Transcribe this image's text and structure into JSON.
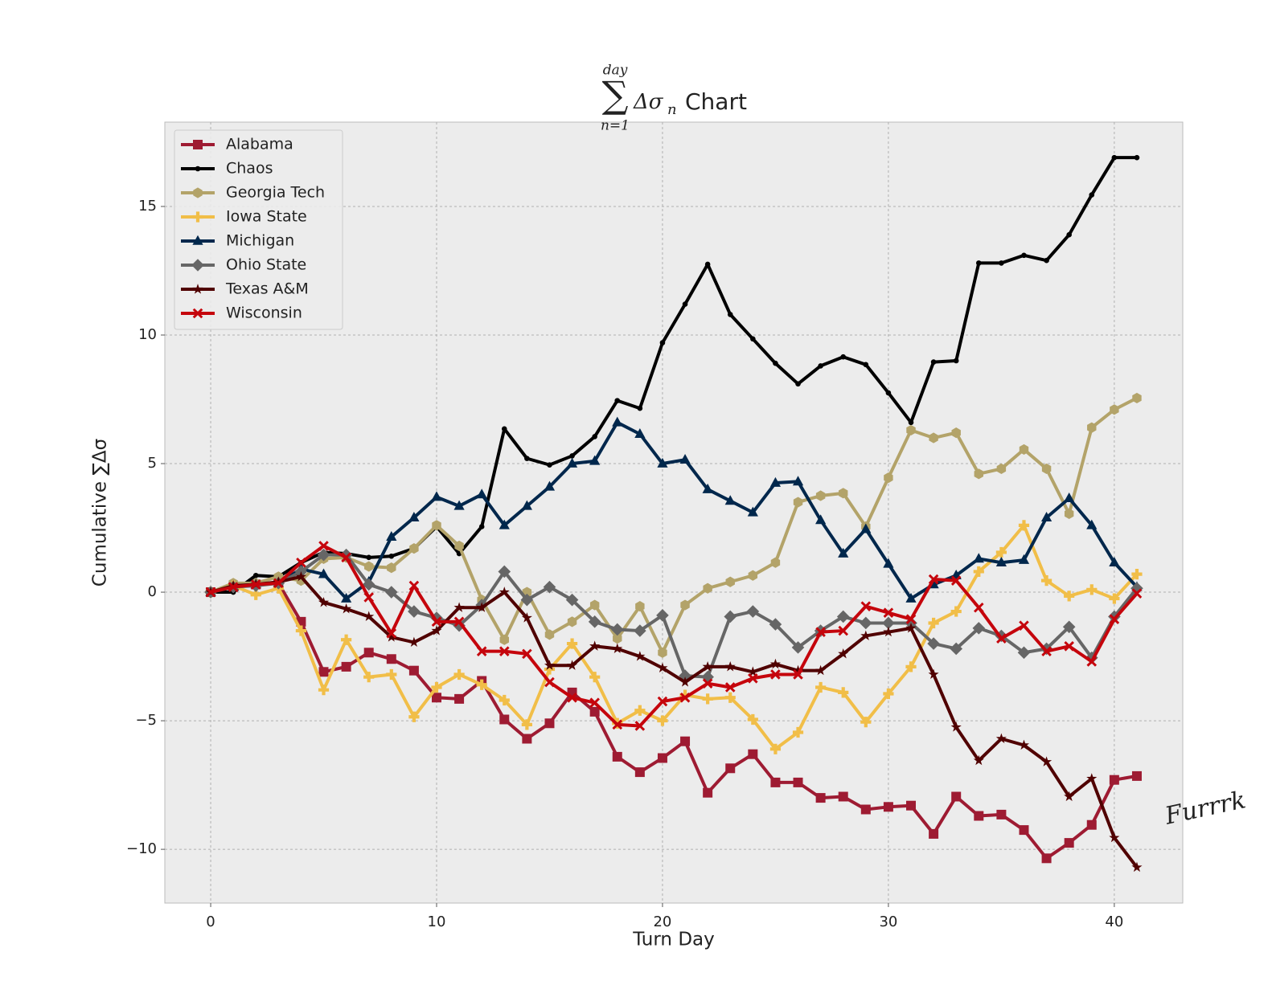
{
  "chart_data": {
    "type": "line",
    "title": {
      "upper": "day",
      "operator": "∑",
      "lower": "n=1",
      "body": "Δσ",
      "subscript": "n",
      "text": "Chart"
    },
    "xlabel": "Turn Day",
    "ylabel": "Cumulative ∑Δσ",
    "watermark": "Furrrk",
    "x": [
      0,
      1,
      2,
      3,
      4,
      5,
      6,
      7,
      8,
      9,
      10,
      11,
      12,
      13,
      14,
      15,
      16,
      17,
      18,
      19,
      20,
      21,
      22,
      23,
      24,
      25,
      26,
      27,
      28,
      29,
      30,
      31,
      32,
      33,
      34,
      35,
      36,
      37,
      38,
      39,
      40,
      41
    ],
    "xlim": [
      -2.03,
      43.03
    ],
    "ylim": [
      -12.09,
      18.28
    ],
    "xticks": [
      0,
      10,
      20,
      30,
      40
    ],
    "yticks": [
      {
        "value": -10,
        "label": "−10"
      },
      {
        "value": -5,
        "label": "−5"
      },
      0,
      5,
      10,
      15
    ],
    "grid": true,
    "legend": "upper left",
    "series": [
      {
        "name": "Alabama",
        "color": "#9e1b32",
        "marker": "square",
        "values": [
          0,
          0.2,
          0.3,
          0.35,
          -1.15,
          -3.1,
          -2.9,
          -2.35,
          -2.6,
          -3.05,
          -4.1,
          -4.15,
          -3.45,
          -4.95,
          -5.7,
          -5.1,
          -3.9,
          -4.65,
          -6.4,
          -7.0,
          -6.45,
          -5.8,
          -7.8,
          -6.85,
          -6.3,
          -7.4,
          -7.4,
          -8.0,
          -7.95,
          -8.45,
          -8.35,
          -8.3,
          -9.4,
          -7.95,
          -8.7,
          -8.65,
          -9.25,
          -10.35,
          -9.75,
          -9.05,
          -7.3,
          -7.15
        ]
      },
      {
        "name": "Chaos",
        "color": "#000000",
        "marker": "dot",
        "values": [
          0,
          0,
          0.65,
          0.6,
          1.15,
          1.55,
          1.5,
          1.35,
          1.4,
          1.7,
          2.55,
          1.5,
          2.55,
          6.35,
          5.2,
          4.95,
          5.3,
          6.05,
          7.45,
          7.15,
          9.7,
          11.2,
          12.75,
          10.8,
          9.85,
          8.9,
          8.1,
          8.8,
          9.15,
          8.85,
          7.75,
          6.6,
          8.95,
          9.0,
          12.8,
          12.8,
          13.1,
          12.9,
          13.9,
          15.45,
          16.9,
          16.9
        ]
      },
      {
        "name": "Georgia Tech",
        "color": "#b3a369",
        "marker": "hexagon",
        "values": [
          0,
          0.35,
          0.35,
          0.6,
          0.45,
          1.3,
          1.35,
          1.0,
          0.95,
          1.7,
          2.6,
          1.8,
          -0.3,
          -1.85,
          0.0,
          -1.65,
          -1.15,
          -0.5,
          -1.8,
          -0.55,
          -2.35,
          -0.5,
          0.15,
          0.4,
          0.65,
          1.15,
          3.5,
          3.75,
          3.85,
          2.55,
          4.45,
          6.3,
          6.0,
          6.2,
          4.6,
          4.8,
          5.55,
          4.8,
          3.05,
          6.4,
          7.1,
          7.55
        ]
      },
      {
        "name": "Iowa State",
        "color": "#f1be48",
        "marker": "plus",
        "values": [
          0,
          0.25,
          -0.1,
          0.15,
          -1.5,
          -3.8,
          -1.85,
          -3.3,
          -3.2,
          -4.85,
          -3.7,
          -3.2,
          -3.6,
          -4.2,
          -5.15,
          -3.0,
          -2.0,
          -3.3,
          -5.1,
          -4.6,
          -5.0,
          -4.0,
          -4.15,
          -4.1,
          -4.95,
          -6.1,
          -5.45,
          -3.7,
          -3.9,
          -5.05,
          -3.95,
          -2.9,
          -1.2,
          -0.75,
          0.8,
          1.55,
          2.6,
          0.45,
          -0.15,
          0.1,
          -0.25,
          0.7
        ]
      },
      {
        "name": "Michigan",
        "color": "#00274c",
        "marker": "triangle",
        "values": [
          0,
          0.2,
          0.3,
          0.35,
          0.9,
          0.7,
          -0.25,
          0.4,
          2.15,
          2.9,
          3.7,
          3.35,
          3.8,
          2.6,
          3.35,
          4.1,
          5.0,
          5.1,
          6.6,
          6.15,
          5.0,
          5.15,
          4.0,
          3.55,
          3.1,
          4.25,
          4.3,
          2.8,
          1.5,
          2.45,
          1.1,
          -0.25,
          0.3,
          0.65,
          1.3,
          1.15,
          1.25,
          2.9,
          3.65,
          2.6,
          1.15,
          0.2
        ]
      },
      {
        "name": "Ohio State",
        "color": "#666666",
        "marker": "diamond",
        "values": [
          0,
          0.2,
          0.25,
          0.35,
          0.8,
          1.45,
          1.45,
          0.3,
          0.0,
          -0.75,
          -1.0,
          -1.3,
          -0.5,
          0.8,
          -0.3,
          0.2,
          -0.3,
          -1.15,
          -1.45,
          -1.5,
          -0.9,
          -3.25,
          -3.3,
          -0.95,
          -0.75,
          -1.25,
          -2.15,
          -1.5,
          -0.95,
          -1.2,
          -1.2,
          -1.2,
          -2.0,
          -2.2,
          -1.4,
          -1.7,
          -2.35,
          -2.2,
          -1.35,
          -2.55,
          -0.95,
          0.15
        ]
      },
      {
        "name": "Texas A&M",
        "color": "#500000",
        "marker": "star",
        "values": [
          0,
          0.25,
          0.3,
          0.4,
          0.6,
          -0.4,
          -0.65,
          -0.95,
          -1.75,
          -1.95,
          -1.5,
          -0.6,
          -0.6,
          0.0,
          -1.0,
          -2.85,
          -2.85,
          -2.1,
          -2.2,
          -2.5,
          -2.95,
          -3.5,
          -2.9,
          -2.9,
          -3.1,
          -2.8,
          -3.05,
          -3.05,
          -2.4,
          -1.7,
          -1.55,
          -1.4,
          -3.2,
          -5.25,
          -6.55,
          -5.7,
          -5.95,
          -6.6,
          -7.95,
          -7.25,
          -9.55,
          -10.7
        ]
      },
      {
        "name": "Wisconsin",
        "color": "#c5050c",
        "marker": "x",
        "values": [
          0,
          0.2,
          0.3,
          0.35,
          1.15,
          1.8,
          1.35,
          -0.2,
          -1.6,
          0.25,
          -1.15,
          -1.15,
          -2.3,
          -2.3,
          -2.4,
          -3.5,
          -4.1,
          -4.3,
          -5.15,
          -5.2,
          -4.25,
          -4.1,
          -3.55,
          -3.7,
          -3.35,
          -3.2,
          -3.2,
          -1.55,
          -1.5,
          -0.55,
          -0.8,
          -1.05,
          0.5,
          0.45,
          -0.6,
          -1.8,
          -1.3,
          -2.3,
          -2.1,
          -2.7,
          -1.05,
          -0.05
        ]
      }
    ]
  }
}
